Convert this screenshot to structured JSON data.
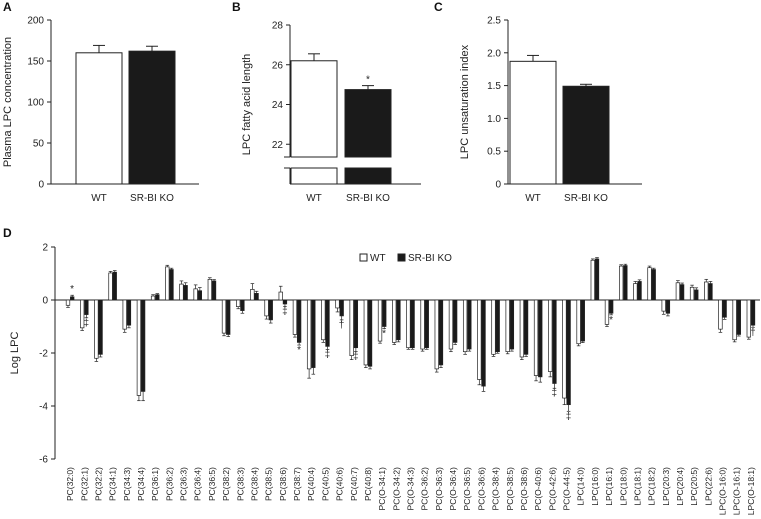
{
  "colors": {
    "wt": "#ffffff",
    "ko": "#1a1a1a",
    "axis": "#222222"
  },
  "chart_data": [
    {
      "panel": "A",
      "type": "bar",
      "ylabel": "Plasma LPC concentration",
      "ylim": [
        0,
        200
      ],
      "yticks": [
        0,
        50,
        100,
        150,
        200
      ],
      "categories": [
        "WT",
        "SR-BI KO"
      ],
      "values": [
        160,
        162
      ],
      "errors": [
        9,
        6
      ],
      "significance": [
        "",
        ""
      ]
    },
    {
      "panel": "B",
      "type": "bar",
      "ylabel": "LPC fatty acid length",
      "ylim": [
        20,
        28
      ],
      "yticks": [
        22,
        24,
        26,
        28
      ],
      "axis_break": true,
      "categories": [
        "WT",
        "SR-BI KO"
      ],
      "values": [
        26.2,
        24.75
      ],
      "errors": [
        0.35,
        0.2
      ],
      "significance": [
        "",
        "*"
      ]
    },
    {
      "panel": "C",
      "type": "bar",
      "ylabel": "LPC unsaturation index",
      "ylim": [
        0,
        2.5
      ],
      "yticks": [
        "0",
        "0.5",
        "1.0",
        "1.5",
        "2.0",
        "2.5"
      ],
      "categories": [
        "WT",
        "SR-BI KO"
      ],
      "values": [
        1.87,
        1.49
      ],
      "errors": [
        0.09,
        0.03
      ],
      "significance": [
        "",
        ""
      ]
    },
    {
      "panel": "D",
      "type": "bar",
      "ylabel": "Log LPC",
      "ylim": [
        -6,
        2
      ],
      "yticks": [
        -6,
        -4,
        -2,
        0,
        2
      ],
      "legend": {
        "position": "top-center",
        "entries": [
          "WT",
          "SR-BI KO"
        ]
      },
      "categories": [
        "PC(32:0)",
        "PC(32:1)",
        "PC(32:2)",
        "PC(34:1)",
        "PC(34:3)",
        "PC(34:4)",
        "PC(36:1)",
        "PC(36:2)",
        "PC(36:3)",
        "PC(36:4)",
        "PC(36:5)",
        "PC(38:2)",
        "PC(38:3)",
        "PC(38:4)",
        "PC(38:5)",
        "PC(38:6)",
        "PC(38:7)",
        "PC(40:4)",
        "PC(40:5)",
        "PC(40:6)",
        "PC(40:7)",
        "PC(40:8)",
        "PC(O-34:1)",
        "PC(O-34:2)",
        "PC(O-34:3)",
        "PC(O-36:2)",
        "PC(O-36:3)",
        "PC(O-36:4)",
        "PC(O-36:5)",
        "PC(O-36:6)",
        "PC(O-38:4)",
        "PC(O-38:5)",
        "PC(O-38:6)",
        "PC(O-40:6)",
        "PC(O-42:6)",
        "PC(O-44:5)",
        "LPC(14:0)",
        "LPC(16:0)",
        "LPC(16:1)",
        "LPC(18:0)",
        "LPC(18:1)",
        "LPC(18:2)",
        "LPC(20:3)",
        "LPC(20:4)",
        "LPC(20:5)",
        "LPC(22:6)",
        "LPC(O-16:0)",
        "LPC(O-16:1)",
        "LPC(O-18:1)"
      ],
      "series": [
        {
          "name": "WT",
          "values": [
            -0.2,
            -1.05,
            -2.2,
            1.02,
            -1.1,
            -3.6,
            0.15,
            1.25,
            0.6,
            0.42,
            0.78,
            -1.25,
            -0.25,
            0.4,
            -0.6,
            0.3,
            -1.3,
            -2.6,
            -1.5,
            -0.3,
            -2.1,
            -2.45,
            -1.55,
            -1.6,
            -1.8,
            -1.85,
            -2.6,
            -1.85,
            -1.95,
            -3.0,
            -2.05,
            -1.95,
            -2.15,
            -2.85,
            -2.7,
            -3.7,
            -1.65,
            1.5,
            -0.92,
            1.28,
            0.62,
            1.22,
            -0.42,
            0.65,
            0.48,
            0.68,
            -1.1,
            -1.5,
            -1.4
          ],
          "errors": [
            0.08,
            0.1,
            0.12,
            0.06,
            0.12,
            0.2,
            0.05,
            0.06,
            0.12,
            0.15,
            0.06,
            0.1,
            0.08,
            0.22,
            0.12,
            0.22,
            0.1,
            0.35,
            0.1,
            0.15,
            0.15,
            0.1,
            0.08,
            0.08,
            0.06,
            0.08,
            0.12,
            0.1,
            0.1,
            0.2,
            0.08,
            0.08,
            0.1,
            0.2,
            0.2,
            0.25,
            0.08,
            0.05,
            0.08,
            0.05,
            0.08,
            0.06,
            0.12,
            0.08,
            0.08,
            0.1,
            0.12,
            0.08,
            0.08
          ]
        },
        {
          "name": "SR-BI KO",
          "values": [
            0.12,
            -0.55,
            -2.05,
            1.05,
            -0.95,
            -3.45,
            0.2,
            1.15,
            0.55,
            0.35,
            0.72,
            -1.3,
            -0.4,
            0.25,
            -0.75,
            -0.15,
            -1.6,
            -2.55,
            -1.75,
            -0.6,
            -1.8,
            -2.5,
            -1.0,
            -1.5,
            -1.8,
            -1.8,
            -2.45,
            -1.6,
            -1.85,
            -3.25,
            -1.95,
            -1.85,
            -2.05,
            -2.9,
            -3.15,
            -3.95,
            -1.55,
            1.55,
            -0.5,
            1.3,
            0.7,
            1.15,
            -0.5,
            0.58,
            0.38,
            0.62,
            -0.65,
            -1.3,
            -0.95
          ],
          "errors": [
            0.06,
            0.12,
            0.1,
            0.06,
            0.1,
            0.35,
            0.04,
            0.05,
            0.1,
            0.12,
            0.05,
            0.08,
            0.1,
            0.08,
            0.12,
            0.1,
            0.1,
            0.25,
            0.12,
            0.15,
            0.15,
            0.1,
            0.08,
            0.08,
            0.06,
            0.06,
            0.1,
            0.08,
            0.08,
            0.2,
            0.06,
            0.08,
            0.08,
            0.2,
            0.18,
            0.25,
            0.06,
            0.05,
            0.06,
            0.05,
            0.06,
            0.05,
            0.1,
            0.06,
            0.08,
            0.08,
            0.08,
            0.06,
            0.08
          ]
        }
      ],
      "significance": {
        "PC(32:0)": "*",
        "PC(32:1)": "‡",
        "PC(38:6)": "‡",
        "PC(38:7)": "*",
        "PC(40:5)": "‡",
        "PC(40:6)": "†",
        "PC(40:7)": "‡",
        "PC(O-34:1)": "*",
        "PC(O-42:6)": "‡",
        "PC(O-44:5)": "‡",
        "LPC(16:1)": "*",
        "LPC(O-18:1)": "†"
      }
    }
  ]
}
